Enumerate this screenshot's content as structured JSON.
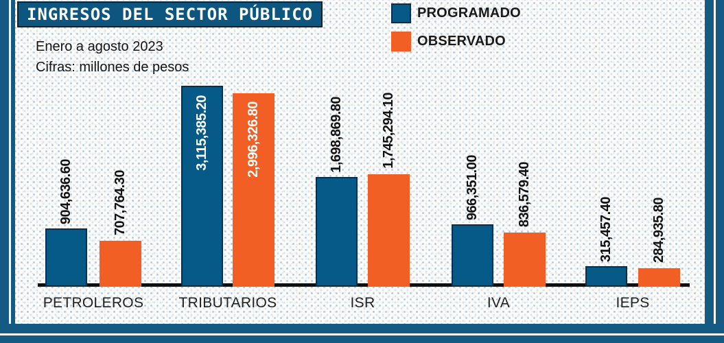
{
  "title": "INGRESOS DEL SECTOR PÚBLICO",
  "subtitle_line1": "Enero a agosto 2023",
  "subtitle_line2": "Cifras: millones de pesos",
  "colors": {
    "programado_blue": "#065a88",
    "observado_orange": "#f15f25",
    "frame_blue": "#155a82",
    "title_background": "#0d5680",
    "axis_black": "#101010"
  },
  "legend": [
    {
      "label": "PROGRAMADO",
      "color": "#065a88",
      "border": "#0d2c45"
    },
    {
      "label": "OBSERVADO",
      "color": "#f15f25",
      "border": "#f15f25"
    }
  ],
  "chart_data": {
    "type": "bar",
    "title": "INGRESOS DEL SECTOR PÚBLICO",
    "subtitle": "Enero a agosto 2023",
    "units_note": "Cifras: millones de pesos",
    "categories": [
      "PETROLEROS",
      "TRIBUTARIOS",
      "ISR",
      "IVA",
      "IEPS"
    ],
    "series": [
      {
        "name": "PROGRAMADO",
        "color": "#065a88",
        "values": [
          904636.6,
          3115385.2,
          1698869.8,
          966351.0,
          315457.4
        ],
        "labels": [
          "904,636.60",
          "3,115,385.20",
          "1,698,869.80",
          "966,351.00",
          "315,457.40"
        ]
      },
      {
        "name": "OBSERVADO",
        "color": "#f15f25",
        "values": [
          707764.3,
          2996326.8,
          1745294.1,
          836579.4,
          284935.8
        ],
        "labels": [
          "707,764.30",
          "2,996,326.80",
          "1,745,294.10",
          "836,579.40",
          "284,935.80"
        ]
      }
    ],
    "ylim": [
      0,
      3200000
    ],
    "grid": false,
    "y_axis_shown": false,
    "value_label_rotation": "vertical-bottom-to-top",
    "legend_position": "top-right"
  }
}
